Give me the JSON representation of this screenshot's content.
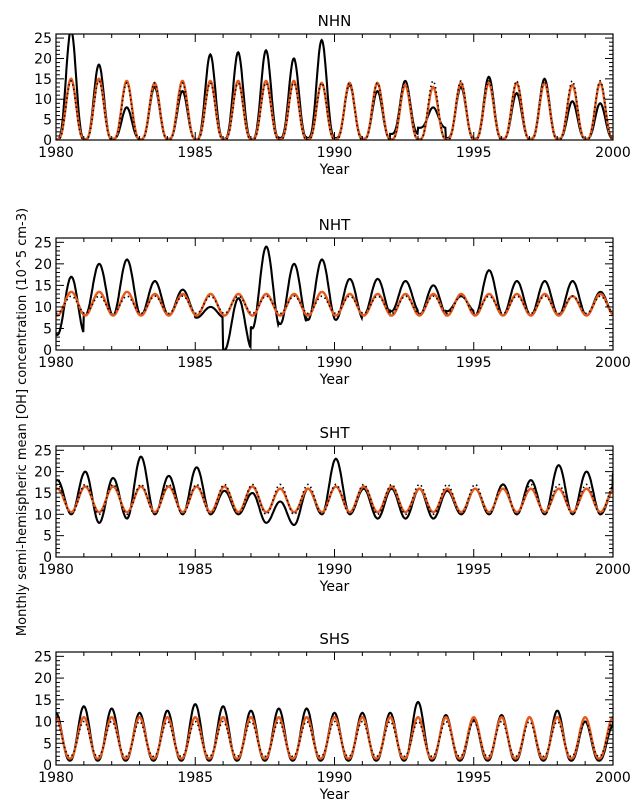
{
  "figure": {
    "ylabel": "Monthly semi-hemispheric mean [OH] concentration (10^5 cm-3)"
  },
  "chart_data": [
    {
      "type": "line",
      "title": "NHN",
      "xlabel": "Year",
      "ylabel": "",
      "xlim": [
        1980,
        2000
      ],
      "ylim": [
        0,
        26
      ],
      "xticks": [
        1980,
        1985,
        1990,
        1995,
        2000
      ],
      "yticks": [
        0,
        5,
        10,
        15,
        20,
        25
      ],
      "model": {
        "base": 7,
        "amp": 7,
        "phase": 0.54,
        "sharp": 1.6
      },
      "series": [
        {
          "color": "#000000",
          "style": "solid",
          "peaks": [
            27,
            18.5,
            8,
            13,
            12,
            21,
            21.5,
            22,
            20,
            24.5,
            13.5,
            12,
            14.5,
            8,
            13,
            15.5,
            11.5,
            15,
            9.5,
            9,
            11.5
          ],
          "troughs": [
            0.2,
            0,
            0.3,
            0.2,
            0.3,
            0.2,
            0.3,
            0.2,
            0.5,
            0.5,
            0.5,
            0.3,
            1.5,
            3,
            0.5,
            0.3,
            0.3,
            0.3,
            0.3,
            0.3
          ]
        },
        {
          "color": "#E85A1C",
          "style": "solid",
          "peaks": [
            15,
            15,
            14.5,
            14,
            14.5,
            14.5,
            14.5,
            14.5,
            14.5,
            14,
            14,
            14,
            13.5,
            13,
            14,
            14,
            14,
            14,
            13.5,
            14,
            14
          ],
          "troughs": [
            0.2,
            0.2,
            0.2,
            0.2,
            0.2,
            0.2,
            0.2,
            0.2,
            0.2,
            0.2,
            0.2,
            0.2,
            0.2,
            0.2,
            0.2,
            0.2,
            0.2,
            0.2,
            0.2,
            0.2
          ]
        },
        {
          "color": "#000000",
          "style": "dotted",
          "peaks": [
            14.5,
            14.5,
            14,
            14,
            14,
            14,
            14,
            14,
            14,
            14,
            14,
            14,
            14.5,
            14.5,
            14.5,
            14.5,
            14.5,
            14.5,
            14.5,
            14.5,
            14.5
          ],
          "troughs": [
            0,
            0,
            0,
            0,
            0,
            0,
            0,
            0,
            0,
            0,
            0,
            0,
            0,
            0,
            0,
            0,
            0,
            0,
            0,
            0
          ]
        }
      ]
    },
    {
      "type": "line",
      "title": "NHT",
      "xlabel": "Year",
      "ylabel": "",
      "xlim": [
        1980,
        2000
      ],
      "ylim": [
        0,
        26
      ],
      "xticks": [
        1980,
        1985,
        1990,
        1995,
        2000
      ],
      "yticks": [
        0,
        5,
        10,
        15,
        20,
        25
      ],
      "model": {
        "base": 10,
        "amp": 3,
        "phase": 0.55,
        "sharp": 1.0
      },
      "series": [
        {
          "color": "#000000",
          "style": "solid",
          "peaks": [
            17,
            20,
            21,
            16,
            14,
            10,
            12,
            24,
            20,
            21,
            16.5,
            16.5,
            16,
            15,
            12.5,
            18.5,
            16,
            16,
            16,
            13.5,
            12.5
          ],
          "troughs": [
            3.5,
            8,
            8,
            8,
            8,
            7.5,
            0,
            5,
            6,
            7,
            7,
            8,
            9,
            8,
            9,
            8,
            8,
            8,
            8,
            8
          ]
        },
        {
          "color": "#E85A1C",
          "style": "solid",
          "peaks": [
            13.5,
            13.5,
            13.5,
            13,
            13,
            13,
            13,
            13,
            13,
            13.5,
            13,
            13,
            13,
            13,
            13,
            13,
            13,
            13,
            12.5,
            13,
            12.5
          ],
          "troughs": [
            8,
            8,
            8,
            8,
            8,
            8,
            8,
            8,
            8,
            8,
            8,
            8,
            8,
            8,
            8,
            8,
            8,
            8,
            8,
            8
          ]
        },
        {
          "color": "#000000",
          "style": "dotted",
          "peaks": [
            12.5,
            12.5,
            12.5,
            12.5,
            12.5,
            12.5,
            12.5,
            12.5,
            12.5,
            12.5,
            12.5,
            12.5,
            12.5,
            12.5,
            12.5,
            12.5,
            12.5,
            12.5,
            12.5,
            12.5,
            12.5
          ],
          "troughs": [
            8.5,
            8.5,
            8.5,
            8.5,
            8.5,
            8.5,
            8.5,
            8.5,
            8.5,
            8.5,
            8.5,
            8.5,
            8.5,
            8.5,
            8.5,
            8.5,
            8.5,
            8.5,
            8.5,
            8.5
          ]
        }
      ]
    },
    {
      "type": "line",
      "title": "SHT",
      "xlabel": "Year",
      "ylabel": "",
      "xlim": [
        1980,
        2000
      ],
      "ylim": [
        0,
        26
      ],
      "xticks": [
        1980,
        1985,
        1990,
        1995,
        2000
      ],
      "yticks": [
        0,
        5,
        10,
        15,
        20,
        25
      ],
      "model": {
        "base": 13,
        "amp": 3,
        "phase": 0.05,
        "sharp": 1.0
      },
      "series": [
        {
          "color": "#000000",
          "style": "solid",
          "peaks": [
            18,
            20,
            18.5,
            23.5,
            19,
            21,
            15.5,
            15,
            13,
            16,
            23,
            16,
            16,
            16,
            15.5,
            16,
            17,
            18,
            21.5,
            20,
            16
          ],
          "troughs": [
            10,
            8,
            9,
            10,
            10,
            10,
            10,
            8,
            7.5,
            10,
            10,
            9,
            9,
            9,
            10,
            10,
            10,
            10,
            10,
            10
          ]
        },
        {
          "color": "#E85A1C",
          "style": "solid",
          "peaks": [
            16,
            16.5,
            16.5,
            16.5,
            16.5,
            16.5,
            16.5,
            16.5,
            16,
            16,
            16.5,
            16.5,
            16.5,
            16,
            16,
            16,
            16,
            16,
            16,
            16,
            16
          ],
          "troughs": [
            10.5,
            10.5,
            10.5,
            10.5,
            10.5,
            10.5,
            10.5,
            10.5,
            10.5,
            10.5,
            10.5,
            10.5,
            10.5,
            10.5,
            10.5,
            10.5,
            10.5,
            10.5,
            10.5,
            10.5
          ]
        },
        {
          "color": "#000000",
          "style": "dotted",
          "peaks": [
            17,
            17,
            17,
            17,
            17,
            17,
            17,
            17,
            17,
            17,
            17,
            17,
            17,
            17,
            17,
            17,
            17,
            17,
            17,
            17,
            17
          ],
          "troughs": [
            10,
            10,
            10,
            10,
            10,
            10,
            10,
            10,
            10,
            10,
            10,
            10,
            10,
            10,
            10,
            10,
            10,
            10,
            10,
            10
          ]
        }
      ]
    },
    {
      "type": "line",
      "title": "SHS",
      "xlabel": "Year",
      "ylabel": "",
      "xlim": [
        1980,
        2000
      ],
      "ylim": [
        0,
        26
      ],
      "xticks": [
        1980,
        1985,
        1990,
        1995,
        2000
      ],
      "yticks": [
        0,
        5,
        10,
        15,
        20,
        25
      ],
      "model": {
        "base": 6,
        "amp": 5.5,
        "phase": 0.0,
        "sharp": 1.2
      },
      "series": [
        {
          "color": "#000000",
          "style": "solid",
          "peaks": [
            12,
            13.5,
            13,
            12,
            12.5,
            14,
            13.5,
            12.5,
            13,
            13,
            12,
            12,
            12,
            14.5,
            11.5,
            10.5,
            11.5,
            11,
            12.5,
            10,
            9
          ],
          "troughs": [
            1,
            1,
            1,
            1,
            1,
            1,
            1,
            1,
            1,
            1,
            1,
            1,
            1,
            1,
            1,
            1,
            1,
            1,
            1,
            1
          ]
        },
        {
          "color": "#E85A1C",
          "style": "solid",
          "peaks": [
            11,
            11,
            11,
            11,
            11,
            11,
            11,
            11,
            11,
            11,
            11,
            11,
            11,
            11,
            11,
            11,
            11,
            11,
            11,
            11,
            11
          ],
          "troughs": [
            1.5,
            1.5,
            1.5,
            1.5,
            1.5,
            1.5,
            1.5,
            1.5,
            1.5,
            1.5,
            1.5,
            1.5,
            1.5,
            1.5,
            1.5,
            1.5,
            1.5,
            1.5,
            1.5,
            1.5
          ]
        },
        {
          "color": "#000000",
          "style": "dotted",
          "peaks": [
            10,
            10,
            10,
            10,
            10,
            10,
            10,
            10,
            10,
            10,
            10,
            10,
            10,
            10,
            10,
            10,
            10,
            10,
            10,
            10,
            10
          ],
          "troughs": [
            2,
            2,
            2,
            2,
            2,
            2,
            2,
            2,
            2,
            2,
            2,
            2,
            2,
            2,
            2,
            2,
            2,
            2,
            2,
            2
          ]
        }
      ]
    }
  ]
}
